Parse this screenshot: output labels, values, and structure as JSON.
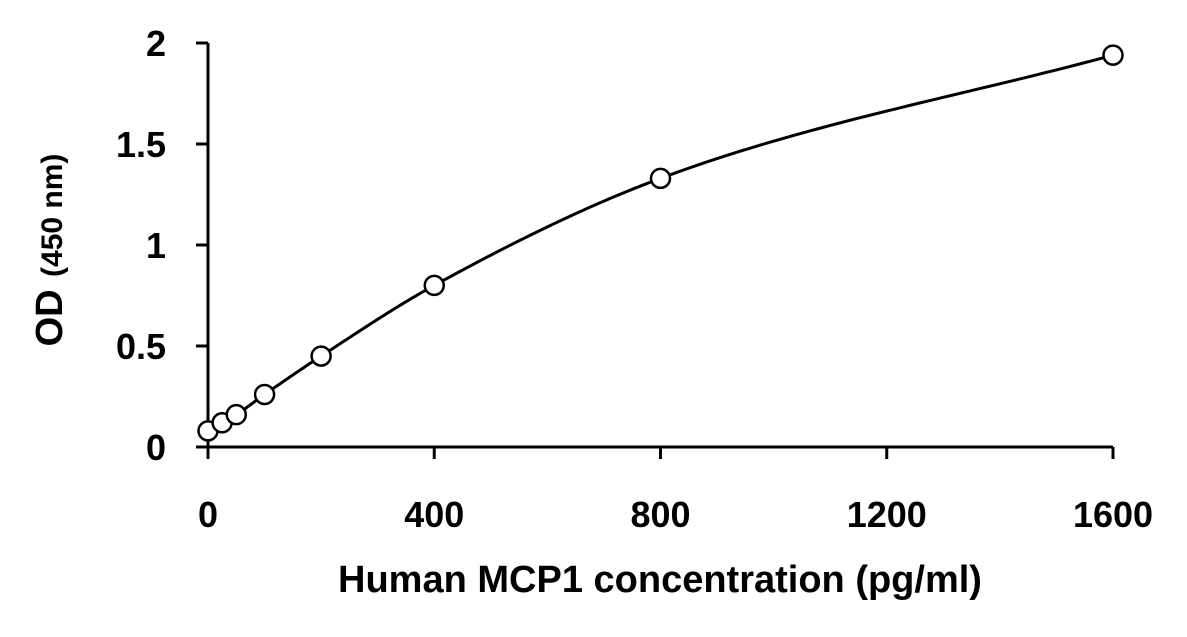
{
  "chart_data": {
    "type": "scatter",
    "title": "",
    "xlabel": "Human MCP1 concentration (pg/ml)",
    "ylabel_main": "OD",
    "ylabel_unit": "(450 nm)",
    "xlim": [
      0,
      1600
    ],
    "ylim": [
      0,
      2
    ],
    "x_ticks": [
      0,
      400,
      800,
      1200,
      1600
    ],
    "x_tick_labels": [
      "0",
      "400",
      "800",
      "1200",
      "1600"
    ],
    "y_ticks": [
      0,
      0.5,
      1,
      1.5,
      2
    ],
    "y_tick_labels": [
      "0",
      "0.5",
      "1",
      "1.5",
      "2"
    ],
    "grid": false,
    "legend": "none",
    "series": [
      {
        "marker": "open-circle",
        "fit": "smooth-curve",
        "x": [
          0,
          25,
          50,
          100,
          200,
          400,
          800,
          1600
        ],
        "y": [
          0.08,
          0.12,
          0.16,
          0.26,
          0.45,
          0.8,
          1.33,
          1.94
        ]
      }
    ],
    "colors": {
      "line": "#000000",
      "marker_stroke": "#000000",
      "marker_fill": "#ffffff",
      "axis": "#000000"
    }
  }
}
